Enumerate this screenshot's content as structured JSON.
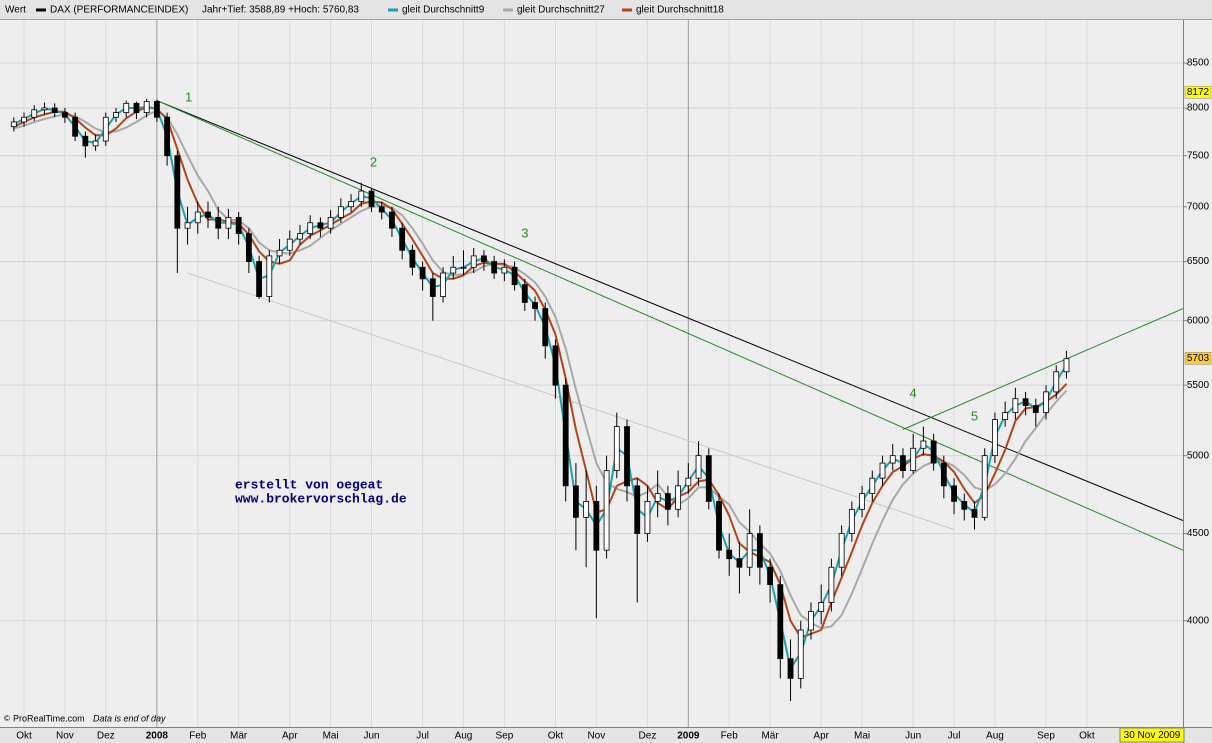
{
  "chart_data": {
    "type": "candlestick",
    "header": "Wert",
    "subtitle": "Jahr+Tief: 3588,89 +Hoch: 5760,83",
    "log_scale": true,
    "grid": true,
    "ylim": [
      3460,
      9010
    ],
    "yticks": [
      4000,
      4500,
      5000,
      5500,
      6000,
      6500,
      7000,
      7500,
      8000,
      8500
    ],
    "categories": [
      null,
      "Okt",
      null,
      null,
      null,
      "Nov",
      null,
      null,
      null,
      "Dez",
      null,
      null,
      null,
      null,
      "2008",
      null,
      null,
      null,
      "Feb",
      null,
      null,
      null,
      "Mär",
      null,
      null,
      null,
      null,
      "Apr",
      null,
      null,
      null,
      "Mai",
      null,
      null,
      null,
      "Jun",
      null,
      null,
      null,
      null,
      "Jul",
      null,
      null,
      null,
      "Aug",
      null,
      null,
      null,
      "Sep",
      null,
      null,
      null,
      null,
      "Okt",
      null,
      null,
      null,
      "Nov",
      null,
      null,
      null,
      null,
      "Dez",
      null,
      null,
      null,
      "2009",
      null,
      null,
      null,
      "Feb",
      null,
      null,
      null,
      "Mär",
      null,
      null,
      null,
      null,
      "Apr",
      null,
      null,
      null,
      "Mai",
      null,
      null,
      null,
      null,
      "Jun",
      null,
      null,
      null,
      "Jul",
      null,
      null,
      null,
      "Aug",
      null,
      null,
      null,
      null,
      "Sep",
      null,
      null,
      null,
      "Okt",
      null
    ],
    "candles": {
      "name": "DAX (PERFORMANCEINDEX)",
      "color": "#000000",
      "open": [
        7800,
        7850,
        7900,
        7980,
        8000,
        7950,
        7900,
        7700,
        7600,
        7650,
        7900,
        7950,
        8050,
        7950,
        8070,
        7900,
        7500,
        6800,
        6850,
        6950,
        6900,
        6800,
        6900,
        6750,
        6500,
        6200,
        6550,
        6600,
        6700,
        6750,
        6850,
        6800,
        6900,
        7000,
        7050,
        7150,
        7000,
        6950,
        6800,
        6600,
        6450,
        6350,
        6200,
        6400,
        6450,
        6450,
        6550,
        6500,
        6400,
        6450,
        6300,
        6150,
        6100,
        5800,
        5500,
        4800,
        4600,
        4700,
        4400,
        4900,
        5200,
        4800,
        4500,
        4700,
        4750,
        4650,
        4800,
        4850,
        5000,
        4700,
        4400,
        4350,
        4300,
        4500,
        4300,
        4200,
        3800,
        3700,
        3950,
        4050,
        4100,
        4300,
        4500,
        4650,
        4750,
        4850,
        4950,
        5000,
        4900,
        5050,
        5100,
        4950,
        4800,
        4700,
        4650,
        4600,
        5000,
        5250,
        5300,
        5400,
        5350,
        5300,
        5450,
        5600,
        null,
        null,
        null
      ],
      "high": [
        7900,
        7950,
        8030,
        8060,
        8050,
        8000,
        7950,
        7750,
        7720,
        7950,
        8000,
        8080,
        8070,
        8100,
        8090,
        7950,
        7550,
        7000,
        7050,
        7050,
        7000,
        6980,
        6950,
        6800,
        6550,
        6600,
        6700,
        6780,
        6830,
        6920,
        6900,
        6970,
        7080,
        7120,
        7230,
        7180,
        7050,
        7000,
        6850,
        6650,
        6500,
        6400,
        6450,
        6550,
        6600,
        6620,
        6600,
        6550,
        6520,
        6500,
        6350,
        6200,
        6150,
        5850,
        5550,
        4950,
        4900,
        4800,
        5000,
        5300,
        5250,
        4850,
        4800,
        4900,
        4800,
        4900,
        4950,
        5100,
        5050,
        4750,
        4500,
        4450,
        4650,
        4550,
        4350,
        4250,
        3900,
        4000,
        4100,
        4200,
        4350,
        4550,
        4700,
        4800,
        4900,
        5000,
        5080,
        5050,
        5150,
        5200,
        5150,
        5000,
        4850,
        4750,
        4700,
        5050,
        5300,
        5380,
        5480,
        5450,
        5400,
        5500,
        5650,
        5760,
        null,
        null,
        null
      ],
      "low": [
        7750,
        7800,
        7860,
        7930,
        7900,
        7840,
        7650,
        7480,
        7550,
        7600,
        7850,
        7900,
        7880,
        7900,
        7850,
        7400,
        6400,
        6650,
        6750,
        6800,
        6700,
        6700,
        6650,
        6400,
        6180,
        6150,
        6480,
        6550,
        6650,
        6700,
        6720,
        6750,
        6850,
        6950,
        7000,
        6950,
        6880,
        6720,
        6520,
        6380,
        6250,
        6000,
        6150,
        6350,
        6380,
        6400,
        6420,
        6350,
        6330,
        6250,
        6080,
        6000,
        5700,
        5400,
        4700,
        4400,
        4300,
        4014,
        4350,
        4850,
        4700,
        4100,
        4450,
        4600,
        4550,
        4600,
        4750,
        4800,
        4650,
        4350,
        4250,
        4150,
        4250,
        4200,
        4100,
        3700,
        3588,
        3650,
        3900,
        3980,
        4050,
        4250,
        4450,
        4600,
        4700,
        4800,
        4900,
        4850,
        4880,
        5000,
        4900,
        4720,
        4620,
        4580,
        4525,
        4580,
        4950,
        5200,
        5250,
        5280,
        5200,
        5250,
        5400,
        5550,
        null,
        null,
        null
      ],
      "close": [
        7850,
        7900,
        7980,
        8000,
        7950,
        7900,
        7700,
        7600,
        7650,
        7900,
        7950,
        8050,
        7950,
        8070,
        7900,
        7500,
        6800,
        6850,
        6950,
        6900,
        6800,
        6900,
        6750,
        6500,
        6200,
        6550,
        6600,
        6700,
        6750,
        6850,
        6800,
        6900,
        7000,
        7050,
        7150,
        7000,
        6950,
        6800,
        6600,
        6450,
        6350,
        6200,
        6400,
        6450,
        6450,
        6550,
        6500,
        6400,
        6450,
        6300,
        6150,
        6100,
        5800,
        5500,
        4800,
        4600,
        4700,
        4400,
        4900,
        5200,
        4800,
        4500,
        4700,
        4750,
        4650,
        4800,
        4850,
        5000,
        4700,
        4400,
        4350,
        4300,
        4500,
        4300,
        4200,
        3800,
        3700,
        3950,
        4050,
        4100,
        4300,
        4500,
        4650,
        4750,
        4850,
        4950,
        5000,
        4900,
        5050,
        5100,
        4950,
        4800,
        4700,
        4650,
        4600,
        5000,
        5250,
        5300,
        5400,
        5350,
        5300,
        5450,
        5600,
        5700,
        null,
        null,
        null
      ]
    },
    "series": [
      {
        "name": "gleit Durchschnitt9",
        "color": "#1aa3ad",
        "values": [
          7830,
          7880,
          7940,
          7990,
          7980,
          7930,
          7800,
          7650,
          7630,
          7780,
          7930,
          8000,
          8000,
          8010,
          7990,
          7700,
          7150,
          6830,
          6900,
          6930,
          6850,
          6850,
          6830,
          6630,
          6350,
          6380,
          6580,
          6650,
          6730,
          6800,
          6830,
          6850,
          6950,
          7030,
          7100,
          7080,
          6980,
          6880,
          6700,
          6530,
          6400,
          6280,
          6300,
          6430,
          6450,
          6500,
          6530,
          6450,
          6430,
          6380,
          6230,
          6130,
          5950,
          5650,
          5150,
          4700,
          4650,
          4550,
          4650,
          5050,
          5000,
          4650,
          4600,
          4730,
          4700,
          4730,
          4830,
          4930,
          4850,
          4550,
          4380,
          4330,
          4400,
          4400,
          4250,
          4000,
          3750,
          3830,
          4000,
          4080,
          4200,
          4400,
          4580,
          4700,
          4800,
          4900,
          4980,
          4950,
          4980,
          5080,
          5030,
          4880,
          4750,
          4680,
          4630,
          4800,
          5130,
          5280,
          5350,
          5380,
          5330,
          5380,
          5530,
          5650,
          null,
          null,
          null
        ]
      },
      {
        "name": "gleit Durchschnitt27",
        "color": "#a8a8a8",
        "values": [
          7780,
          7810,
          7850,
          7880,
          7910,
          7930,
          7910,
          7850,
          7780,
          7740,
          7750,
          7790,
          7850,
          7920,
          7970,
          7900,
          7720,
          7500,
          7300,
          7150,
          6970,
          6880,
          6870,
          6800,
          6670,
          6600,
          6580,
          6570,
          6600,
          6640,
          6710,
          6780,
          6840,
          6900,
          6960,
          7000,
          7010,
          6990,
          6920,
          6800,
          6660,
          6510,
          6410,
          6380,
          6390,
          6410,
          6460,
          6480,
          6470,
          6450,
          6390,
          6320,
          6200,
          6030,
          5780,
          5470,
          5200,
          4950,
          4820,
          4780,
          4760,
          4730,
          4760,
          4810,
          4730,
          4680,
          4720,
          4790,
          4790,
          4730,
          4680,
          4570,
          4510,
          4440,
          4380,
          4280,
          4140,
          4030,
          3990,
          3960,
          3970,
          4030,
          4150,
          4290,
          4440,
          4580,
          4710,
          4810,
          4880,
          4930,
          4960,
          4960,
          4930,
          4870,
          4790,
          4770,
          4810,
          4880,
          4980,
          5100,
          5190,
          5290,
          5380,
          5460,
          null,
          null,
          null
        ]
      },
      {
        "name": "gleit Durchschnitt18",
        "color": "#b5441b",
        "values": [
          7800,
          7850,
          7900,
          7930,
          7960,
          7960,
          7890,
          7790,
          7710,
          7710,
          7780,
          7890,
          7960,
          8010,
          7990,
          7880,
          7570,
          7260,
          7030,
          6880,
          6880,
          6860,
          6840,
          6740,
          6590,
          6500,
          6480,
          6510,
          6650,
          6730,
          6780,
          6830,
          6890,
          6940,
          7030,
          7050,
          7040,
          6980,
          6840,
          6700,
          6550,
          6400,
          6350,
          6350,
          6380,
          6460,
          6490,
          6480,
          6480,
          6410,
          6330,
          6250,
          6090,
          5890,
          5550,
          5180,
          4900,
          4630,
          4650,
          4800,
          4830,
          4850,
          4800,
          4690,
          4650,
          4730,
          4760,
          4830,
          4840,
          4740,
          4610,
          4440,
          4390,
          4360,
          4330,
          4200,
          4000,
          3910,
          3930,
          3950,
          4100,
          4240,
          4390,
          4550,
          4690,
          4800,
          4890,
          4930,
          4980,
          5010,
          5000,
          4960,
          4890,
          4780,
          4690,
          4740,
          4880,
          5040,
          5240,
          5330,
          5340,
          5380,
          5430,
          5510,
          null,
          null,
          null
        ]
      }
    ],
    "trend_lines": [
      {
        "color": "#000000",
        "x": [
          14,
          114.4
        ],
        "values": [
          8080,
          4580
        ]
      },
      {
        "color": "#2a8a2a",
        "x": [
          14,
          114.4
        ],
        "values": [
          8080,
          4400
        ]
      },
      {
        "color": "#c8c8c8",
        "x": [
          17,
          92
        ],
        "values": [
          6400,
          4525
        ]
      },
      {
        "color": "#2a8a2a",
        "x": [
          87,
          114.4
        ],
        "values": [
          5180,
          6100
        ]
      }
    ],
    "annotations": [
      {
        "text": "1",
        "x": 17.1,
        "y": 8107
      },
      {
        "text": "2",
        "x": 35.2,
        "y": 7425
      },
      {
        "text": "3",
        "x": 50,
        "y": 6747
      },
      {
        "text": "4",
        "x": 88,
        "y": 5435
      },
      {
        "text": "5",
        "x": 94,
        "y": 5268
      }
    ],
    "price_labels": [
      {
        "value": 8172,
        "color": "#ffff00"
      },
      {
        "value": 5703,
        "color": "#ffcc33"
      }
    ],
    "notes": [
      "erstellt von oegeat",
      "www.brokervorschlag.de"
    ],
    "source": "ProRealTime.com",
    "source_note": "Data is end of day",
    "date": "30 Nov 2009"
  }
}
